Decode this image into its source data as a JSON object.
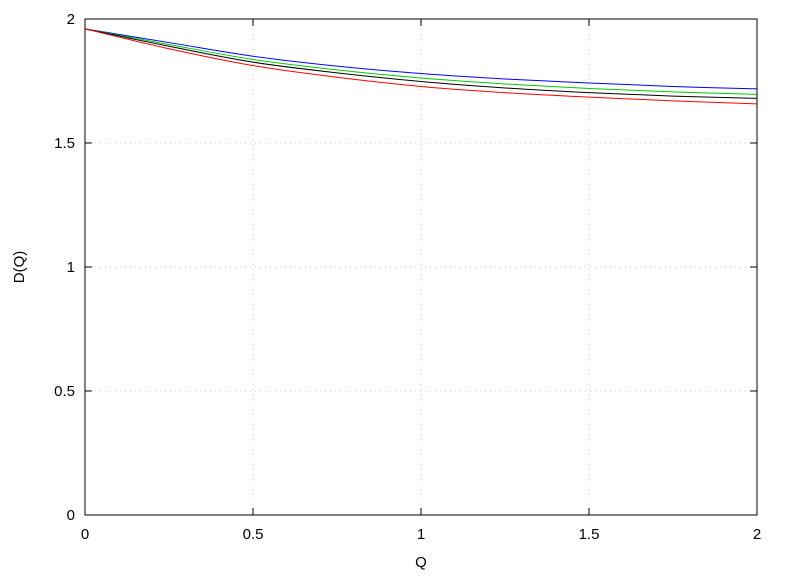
{
  "chart_data": {
    "type": "line",
    "title": "",
    "xlabel": "Q",
    "ylabel": "D(Q)",
    "xlim": [
      0,
      2
    ],
    "ylim": [
      0,
      2
    ],
    "grid": true,
    "legend": "none",
    "x_ticks": [
      {
        "value": 0,
        "label": "0"
      },
      {
        "value": 0.5,
        "label": "0.5"
      },
      {
        "value": 1,
        "label": "1"
      },
      {
        "value": 1.5,
        "label": "1.5"
      },
      {
        "value": 2,
        "label": "2"
      }
    ],
    "y_ticks": [
      {
        "value": 0,
        "label": "0"
      },
      {
        "value": 0.5,
        "label": "0.5"
      },
      {
        "value": 1,
        "label": "1"
      },
      {
        "value": 1.5,
        "label": "1.5"
      },
      {
        "value": 2,
        "label": "2"
      }
    ],
    "x": [
      0,
      0.25,
      0.5,
      0.75,
      1.0,
      1.25,
      1.5,
      1.75,
      2.0
    ],
    "series": [
      {
        "color": "#0000ff",
        "values": [
          1.96,
          1.905,
          1.85,
          1.81,
          1.78,
          1.758,
          1.742,
          1.728,
          1.718
        ]
      },
      {
        "color": "#00cc00",
        "values": [
          1.96,
          1.897,
          1.837,
          1.795,
          1.762,
          1.738,
          1.72,
          1.706,
          1.696
        ]
      },
      {
        "color": "#000000",
        "values": [
          1.96,
          1.89,
          1.826,
          1.783,
          1.748,
          1.722,
          1.703,
          1.689,
          1.68
        ]
      },
      {
        "color": "#ff0000",
        "values": [
          1.96,
          1.88,
          1.812,
          1.765,
          1.728,
          1.703,
          1.685,
          1.67,
          1.658
        ]
      }
    ]
  }
}
